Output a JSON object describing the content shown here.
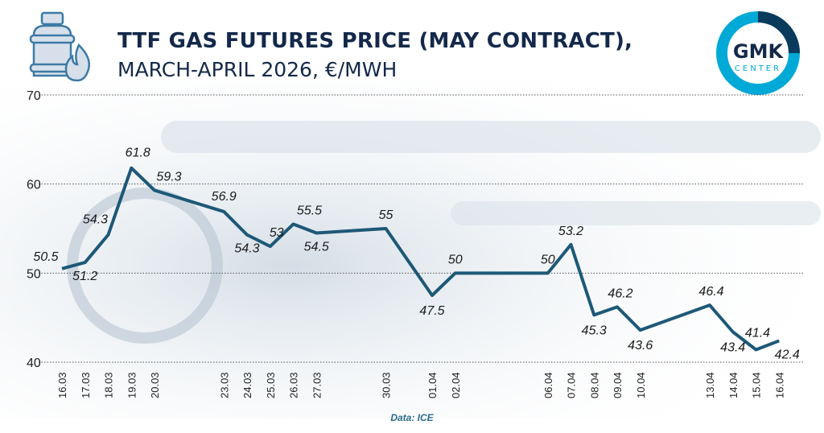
{
  "header": {
    "title": "TTF GAS FUTURES PRICE (MAY CONTRACT),",
    "subtitle": "MARCH-APRIL 2026, €/MWH",
    "icon": "gas-cylinder-flame-icon"
  },
  "logo": {
    "main": "GMK",
    "sub": "CENTER",
    "colors": {
      "ring": "#00a9d6",
      "accent": "#0a3a5c"
    }
  },
  "watermark": {
    "prefix": "gmk.",
    "suffix": "center"
  },
  "source": "Data: ICE",
  "colors": {
    "line": "#1d5877",
    "text": "#14294a",
    "grid": "#555555"
  },
  "chart_data": {
    "type": "line",
    "title": "TTF GAS FUTURES PRICE (MAY CONTRACT), MARCH-APRIL 2026, €/MWH",
    "categories": [
      "16.03",
      "17.03",
      "18.03",
      "19.03",
      "20.03",
      "23.03",
      "24.03",
      "25.03",
      "26.03",
      "27.03",
      "30.03",
      "01.04",
      "02.04",
      "06.04",
      "07.04",
      "08.04",
      "09.04",
      "10.04",
      "13.04",
      "14.04",
      "15.04",
      "16.04"
    ],
    "values": [
      50.5,
      51.2,
      54.3,
      61.8,
      59.3,
      56.9,
      54.3,
      53,
      55.5,
      54.5,
      55,
      47.5,
      50,
      50,
      53.2,
      45.3,
      46.2,
      43.6,
      46.4,
      43.4,
      41.4,
      42.4
    ],
    "labels": [
      "50.5",
      "51.2",
      "54.3",
      "61.8",
      "59.3",
      "56.9",
      "54.3",
      "53",
      "55.5",
      "54.5",
      "55",
      "47.5",
      "50",
      "50",
      "53.2",
      "45.3",
      "46.2",
      "43.6",
      "46.4",
      "43.4",
      "41.4",
      "42.4"
    ],
    "ylim": [
      40,
      70
    ],
    "yticks": [
      "40",
      "50",
      "60",
      "70"
    ],
    "grid": "horizontal dotted",
    "legend": "none"
  }
}
